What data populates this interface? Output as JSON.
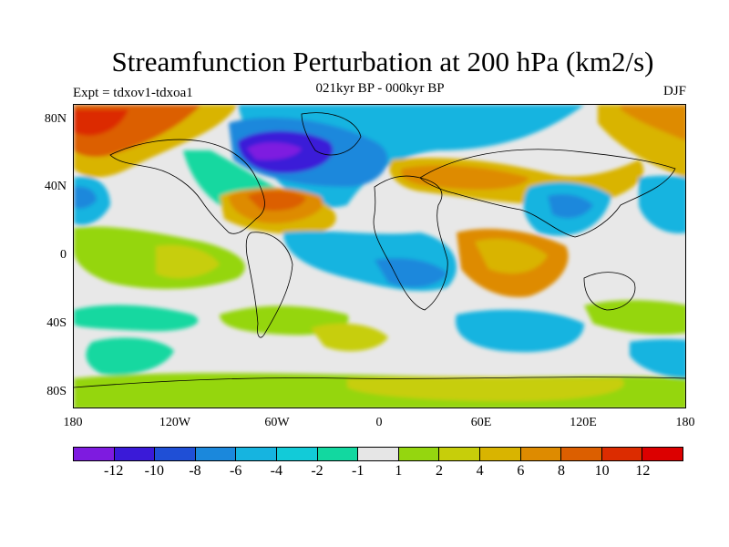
{
  "title": "Streamfunction Perturbation at 200 hPa (km2/s)",
  "subtitle": "021kyr BP - 000kyr BP",
  "expt_label": "Expt = tdxov1-tdxoa1",
  "season_label": "DJF",
  "lat_labels": [
    "80N",
    "40N",
    "0",
    "40S",
    "80S"
  ],
  "lon_labels": [
    "180",
    "120W",
    "60W",
    "0",
    "60E",
    "120E",
    "180"
  ],
  "colorbar": {
    "labels": [
      "-12",
      "-10",
      "-8",
      "-6",
      "-4",
      "-2",
      "-1",
      "1",
      "2",
      "4",
      "6",
      "8",
      "10",
      "12"
    ],
    "colors": [
      "#7e1be0",
      "#3a1ad8",
      "#1f4fd6",
      "#1b88dc",
      "#16b4e0",
      "#12cbd8",
      "#12d8a0",
      "#e6e6e6",
      "#95d60f",
      "#c7ce0a",
      "#d9b400",
      "#de8b00",
      "#dc5f00",
      "#dc2c00",
      "#dc0000"
    ]
  },
  "regions": [
    {
      "name": "west-atlantic-high",
      "color": "#dc5f00",
      "level": "8"
    },
    {
      "name": "canada-low",
      "color": "#3a1ad8",
      "level": "-10"
    },
    {
      "name": "alaska-high",
      "color": "#dc5f00",
      "level": "8"
    },
    {
      "name": "asia-high",
      "color": "#de8b00",
      "level": "6"
    },
    {
      "name": "east-asia-low",
      "color": "#1b88dc",
      "level": "-6"
    }
  ]
}
